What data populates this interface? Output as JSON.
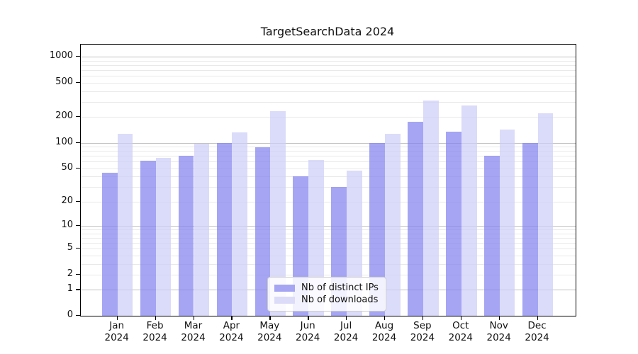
{
  "title": "TargetSearchData 2024",
  "chart_data": {
    "type": "bar",
    "title": "TargetSearchData 2024",
    "xlabel": "",
    "ylabel": "",
    "yscale": "log1p (symlog-like)",
    "categories": [
      "Jan",
      "Feb",
      "Mar",
      "Apr",
      "May",
      "Jun",
      "Jul",
      "Aug",
      "Sep",
      "Oct",
      "Nov",
      "Dec"
    ],
    "category_year_line": "2024",
    "series": [
      {
        "name": "Nb of distinct IPs",
        "color": "rgba(130,130,240,0.72)",
        "legend_color": "#a5a5f3",
        "values": [
          44,
          61,
          70,
          100,
          88,
          40,
          30,
          100,
          176,
          135,
          70,
          100
        ]
      },
      {
        "name": "Nb of downloads",
        "color": "rgba(205,205,248,0.72)",
        "legend_color": "#dcdcf9",
        "values": [
          126,
          66,
          97,
          131,
          233,
          63,
          47,
          128,
          311,
          270,
          142,
          220
        ]
      }
    ],
    "yticks": [
      0,
      1,
      2,
      5,
      10,
      20,
      50,
      100,
      200,
      500,
      1000
    ],
    "major_gridlines": [
      1,
      10,
      100,
      1000
    ],
    "ylim": [
      0,
      1380
    ],
    "grid": true,
    "legend_position": "lower center"
  }
}
